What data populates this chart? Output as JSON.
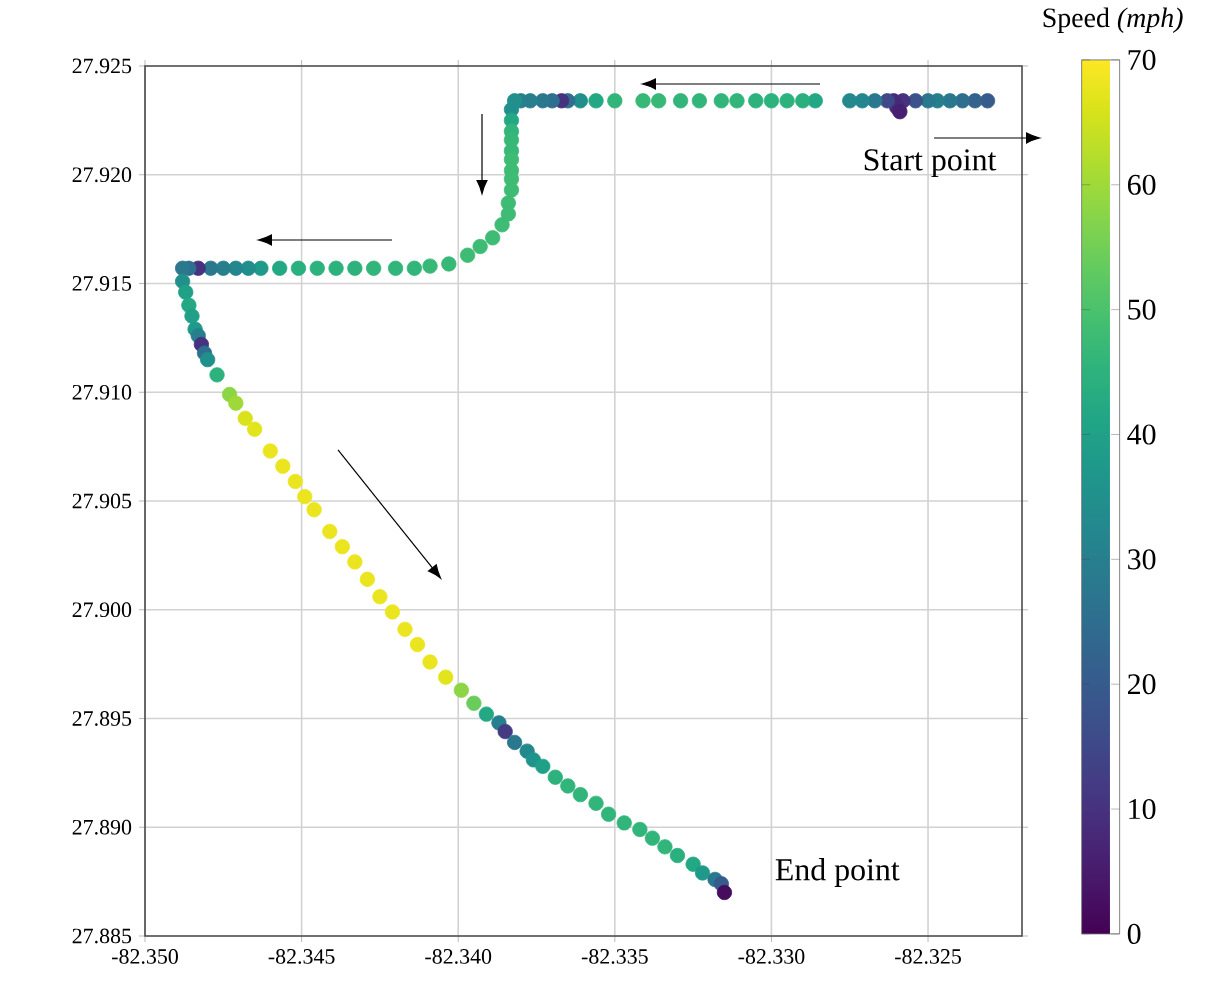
{
  "chart_data": {
    "type": "scatter",
    "clabel": "Speed *(mph)*",
    "annotations": [
      {
        "text": "Start point",
        "x": -82.3231,
        "y": 27.9234
      },
      {
        "text": "End point",
        "x": -82.3315,
        "y": 27.887
      }
    ],
    "x": [
      -82.3231,
      -82.3235,
      -82.3239,
      -82.3243,
      -82.3247,
      -82.325,
      -82.3254,
      -82.3258,
      -82.3261,
      -82.326,
      -82.3259,
      -82.3263,
      -82.3267,
      -82.3271,
      -82.3275,
      -82.3286,
      -82.329,
      -82.3295,
      -82.33,
      -82.3305,
      -82.3311,
      -82.3316,
      -82.3323,
      -82.3329,
      -82.3336,
      -82.3341,
      -82.335,
      -82.3356,
      -82.3361,
      -82.3365,
      -82.3367,
      -82.337,
      -82.3373,
      -82.3377,
      -82.338,
      -82.3382,
      -82.3383,
      -82.3383,
      -82.3383,
      -82.3383,
      -82.3383,
      -82.3383,
      -82.3383,
      -82.3383,
      -82.3383,
      -82.3384,
      -82.3384,
      -82.3386,
      -82.3389,
      -82.3393,
      -82.3397,
      -82.3403,
      -82.3409,
      -82.3414,
      -82.342,
      -82.3427,
      -82.3433,
      -82.3439,
      -82.3445,
      -82.3451,
      -82.3457,
      -82.3463,
      -82.3467,
      -82.3471,
      -82.3475,
      -82.3479,
      -82.3483,
      -82.3486,
      -82.3488,
      -82.3488,
      -82.3487,
      -82.3486,
      -82.3485,
      -82.3484,
      -82.3483,
      -82.3482,
      -82.3481,
      -82.348,
      -82.3477,
      -82.3473,
      -82.3471,
      -82.3468,
      -82.3465,
      -82.346,
      -82.3456,
      -82.3452,
      -82.3449,
      -82.3446,
      -82.3441,
      -82.3437,
      -82.3433,
      -82.3429,
      -82.3425,
      -82.3421,
      -82.3417,
      -82.3413,
      -82.3409,
      -82.3404,
      -82.3399,
      -82.3395,
      -82.3391,
      -82.3387,
      -82.3385,
      -82.3382,
      -82.3378,
      -82.3376,
      -82.3373,
      -82.3369,
      -82.3365,
      -82.3361,
      -82.3356,
      -82.3352,
      -82.3347,
      -82.3342,
      -82.3338,
      -82.3334,
      -82.333,
      -82.3325,
      -82.3322,
      -82.3318,
      -82.3316,
      -82.3315
    ],
    "values": [
      27.9234,
      27.9234,
      27.9234,
      27.9234,
      27.9234,
      27.9234,
      27.9234,
      27.9234,
      27.9234,
      27.9231,
      27.9229,
      27.9234,
      27.9234,
      27.9234,
      27.9234,
      27.9234,
      27.9234,
      27.9234,
      27.9234,
      27.9234,
      27.9234,
      27.9234,
      27.9234,
      27.9234,
      27.9234,
      27.9234,
      27.9234,
      27.9234,
      27.9234,
      27.9234,
      27.9234,
      27.9234,
      27.9234,
      27.9234,
      27.9234,
      27.9234,
      27.923,
      27.9225,
      27.922,
      27.9216,
      27.9211,
      27.9207,
      27.9202,
      27.9198,
      27.9193,
      27.9187,
      27.9182,
      27.9177,
      27.9171,
      27.9167,
      27.9163,
      27.9159,
      27.9158,
      27.9157,
      27.9157,
      27.9157,
      27.9157,
      27.9157,
      27.9157,
      27.9157,
      27.9157,
      27.9157,
      27.9157,
      27.9157,
      27.9157,
      27.9157,
      27.9157,
      27.9157,
      27.9157,
      27.9151,
      27.9146,
      27.914,
      27.9135,
      27.9129,
      27.9126,
      27.9122,
      27.9118,
      27.9115,
      27.9108,
      27.9099,
      27.9095,
      27.9088,
      27.9083,
      27.9073,
      27.9066,
      27.9059,
      27.9052,
      27.9046,
      27.9036,
      27.9029,
      27.9022,
      27.9014,
      27.9006,
      27.8999,
      27.8991,
      27.8984,
      27.8976,
      27.8969,
      27.8963,
      27.8957,
      27.8952,
      27.8948,
      27.8944,
      27.8939,
      27.8935,
      27.8931,
      27.8928,
      27.8923,
      27.8919,
      27.8915,
      27.8911,
      27.8906,
      27.8902,
      27.8899,
      27.8895,
      27.8891,
      27.8887,
      27.8883,
      27.8879,
      27.8876,
      27.8874,
      27.887
    ],
    "cvalues": [
      20,
      22,
      25,
      28,
      30,
      28,
      18,
      10,
      8,
      8,
      6,
      15,
      28,
      32,
      33,
      42,
      44,
      45,
      45,
      45,
      46,
      46,
      46,
      46,
      47,
      47,
      46,
      42,
      35,
      25,
      10,
      25,
      28,
      30,
      30,
      35,
      35,
      42,
      46,
      47,
      47,
      48,
      48,
      48,
      48,
      48,
      48,
      48,
      48,
      48,
      48,
      47,
      47,
      46,
      46,
      46,
      45,
      45,
      45,
      44,
      42,
      38,
      34,
      32,
      30,
      28,
      10,
      25,
      28,
      35,
      40,
      42,
      40,
      38,
      30,
      10,
      25,
      35,
      45,
      58,
      60,
      66,
      67,
      68,
      68,
      68,
      68,
      68,
      68,
      68,
      68,
      68,
      68,
      68,
      68,
      68,
      68,
      67,
      58,
      54,
      42,
      30,
      12,
      28,
      33,
      36,
      40,
      45,
      46,
      46,
      46,
      46,
      46,
      46,
      46,
      46,
      44,
      42,
      38,
      28,
      20,
      2
    ],
    "xlim": [
      -82.35,
      -82.322
    ],
    "ylim": [
      27.885,
      27.925
    ],
    "xticks": [
      {
        "value": -82.35,
        "label": "-82.350"
      },
      {
        "value": -82.345,
        "label": "-82.345"
      },
      {
        "value": -82.34,
        "label": "-82.340"
      },
      {
        "value": -82.335,
        "label": "-82.335"
      },
      {
        "value": -82.33,
        "label": "-82.330"
      },
      {
        "value": -82.325,
        "label": "-82.325"
      }
    ],
    "yticks": [
      {
        "value": 27.885,
        "label": "27.885"
      },
      {
        "value": 27.89,
        "label": "27.890"
      },
      {
        "value": 27.895,
        "label": "27.895"
      },
      {
        "value": 27.9,
        "label": "27.900"
      },
      {
        "value": 27.905,
        "label": "27.905"
      },
      {
        "value": 27.91,
        "label": "27.910"
      },
      {
        "value": 27.915,
        "label": "27.915"
      },
      {
        "value": 27.92,
        "label": "27.920"
      },
      {
        "value": 27.925,
        "label": "27.925"
      }
    ],
    "clim": [
      0,
      70
    ],
    "cticks": [
      0,
      10,
      20,
      30,
      40,
      50,
      60,
      70
    ],
    "grid": true,
    "marker": "circle"
  }
}
